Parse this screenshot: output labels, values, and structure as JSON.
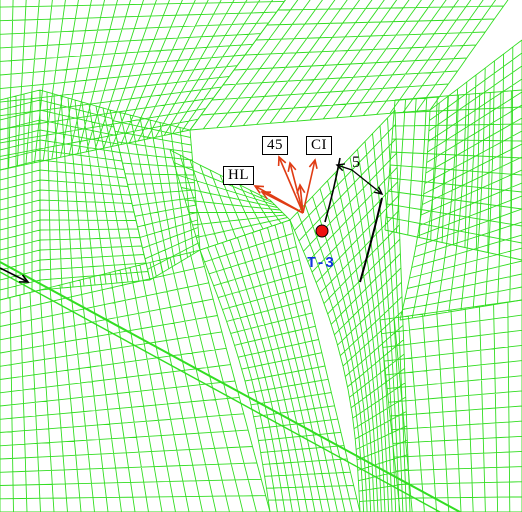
{
  "labels": {
    "hl": "HL",
    "deg45": "45",
    "ci": "CI",
    "distance": "5",
    "point": "T-3"
  },
  "colors": {
    "mesh": "#33dd22",
    "arrow": "#e03c14",
    "point": "#ee1111",
    "point_label": "#1133dd",
    "dimension": "#000000",
    "background": "#ffffff"
  }
}
